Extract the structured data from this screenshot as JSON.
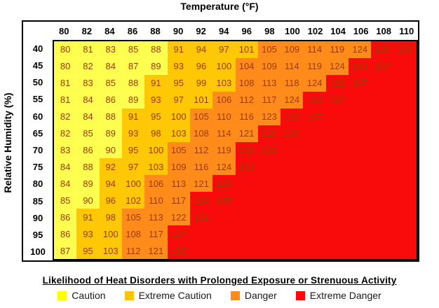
{
  "title": "Temperature (°F)",
  "y_axis_label": "Relative Humidity (%)",
  "legend": {
    "title": "Likelihood of Heat Disorders with Prolonged Exposure or Strenuous Activity",
    "items": [
      {
        "label": "Caution",
        "color": "#FFFF00"
      },
      {
        "label": "Extreme Caution",
        "color": "#FFC30B"
      },
      {
        "label": "Danger",
        "color": "#FB8C1A"
      },
      {
        "label": "Extreme Danger",
        "color": "#FA0B0B"
      }
    ]
  },
  "chart_data": {
    "type": "heatmap",
    "title": "Temperature (°F)",
    "xlabel": "Temperature (°F)",
    "ylabel": "Relative Humidity (%)",
    "legend_position": "bottom",
    "grid": false,
    "temperatures": [
      80,
      82,
      84,
      86,
      88,
      90,
      92,
      94,
      96,
      98,
      100,
      102,
      104,
      106,
      108,
      110
    ],
    "humidity_levels": [
      40,
      45,
      50,
      55,
      60,
      65,
      70,
      75,
      80,
      85,
      90,
      95,
      100
    ],
    "band_names": {
      "Y": "Caution",
      "G": "Extreme Caution",
      "O": "Danger",
      "R": "Extreme Danger"
    },
    "color_map": {
      "Y": "#FFFF4F",
      "G": "#FFC805",
      "O": "#FF8C1A",
      "R": "#FA0B0B"
    },
    "empty_cell_band": "R",
    "rows": [
      {
        "humidity": 40,
        "values": [
          80,
          81,
          83,
          85,
          88,
          91,
          94,
          97,
          101,
          105,
          109,
          114,
          119,
          124,
          130,
          136
        ],
        "bands": "YYYYYGGGGOOOOORR"
      },
      {
        "humidity": 45,
        "values": [
          80,
          82,
          84,
          87,
          89,
          93,
          96,
          100,
          104,
          109,
          114,
          119,
          124,
          130,
          137
        ],
        "bands": "YYYYYGGGOOOOORR"
      },
      {
        "humidity": 50,
        "values": [
          81,
          83,
          85,
          88,
          91,
          95,
          99,
          103,
          108,
          113,
          118,
          124,
          131,
          137
        ],
        "bands": "YYYYGGGGOOOORR"
      },
      {
        "humidity": 55,
        "values": [
          81,
          84,
          86,
          89,
          93,
          97,
          101,
          106,
          112,
          117,
          124,
          130,
          137
        ],
        "bands": "YYYYGGGOOOORR"
      },
      {
        "humidity": 60,
        "values": [
          82,
          84,
          88,
          91,
          95,
          100,
          105,
          110,
          116,
          123,
          129,
          137
        ],
        "bands": "YYYGGGOOOORR"
      },
      {
        "humidity": 65,
        "values": [
          82,
          85,
          89,
          93,
          98,
          103,
          108,
          114,
          121,
          128,
          136
        ],
        "bands": "YYYGGGOOORR"
      },
      {
        "humidity": 70,
        "values": [
          83,
          86,
          90,
          95,
          100,
          105,
          112,
          119,
          126,
          134
        ],
        "bands": "YYYGGOOORR"
      },
      {
        "humidity": 75,
        "values": [
          84,
          88,
          92,
          97,
          103,
          109,
          116,
          124,
          132
        ],
        "bands": "YYGGGOOOR"
      },
      {
        "humidity": 80,
        "values": [
          84,
          89,
          94,
          100,
          106,
          113,
          121,
          129
        ],
        "bands": "YYGGOOOR"
      },
      {
        "humidity": 85,
        "values": [
          85,
          90,
          96,
          102,
          110,
          117,
          126,
          135
        ],
        "bands": "YYGGOORR"
      },
      {
        "humidity": 90,
        "values": [
          86,
          91,
          98,
          105,
          113,
          122,
          131
        ],
        "bands": "YGGOOOR"
      },
      {
        "humidity": 95,
        "values": [
          86,
          93,
          100,
          108,
          117,
          127
        ],
        "bands": "YGGOOR"
      },
      {
        "humidity": 100,
        "values": [
          87,
          95,
          103,
          112,
          121,
          132
        ],
        "bands": "YGGOOR"
      }
    ]
  }
}
